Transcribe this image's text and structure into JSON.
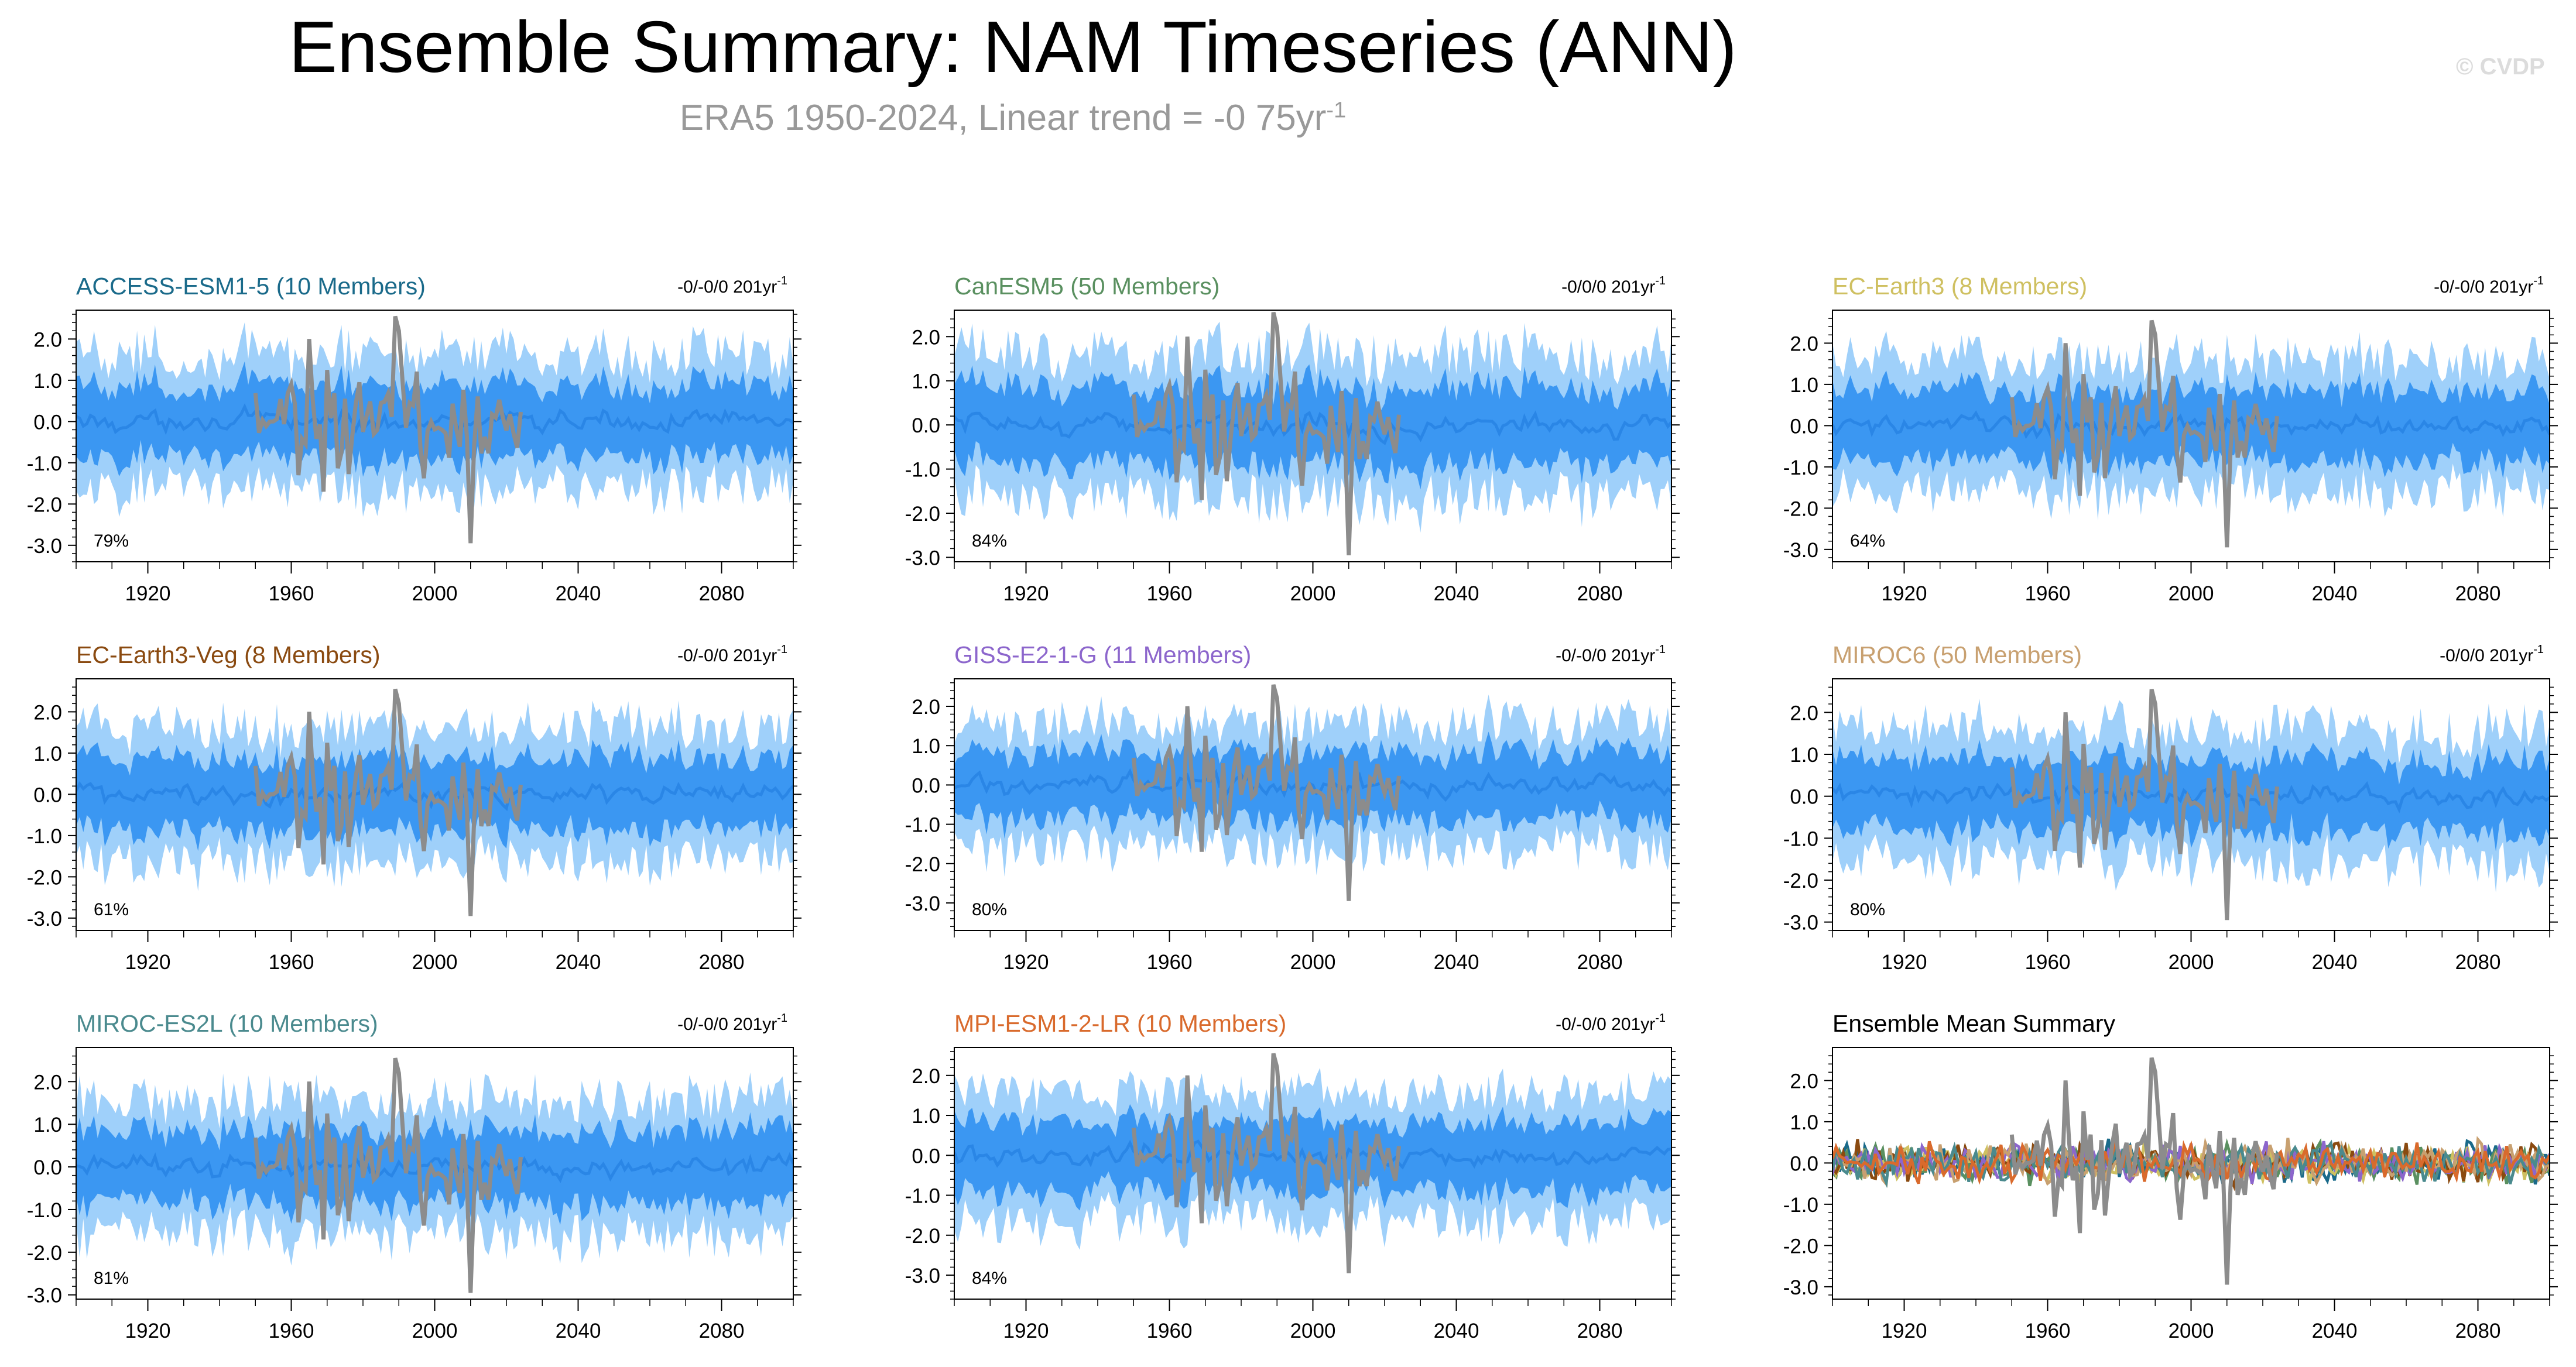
{
  "header": {
    "title": "Ensemble Summary: NAM Timeseries (ANN)",
    "subtitle": "ERA5 1950-2024, Linear trend = -0 75yr",
    "subtitle_sup": "-1",
    "copyright": "© CVDP"
  },
  "axis": {
    "x_ticks": [
      1920,
      1960,
      2000,
      2040,
      2080
    ],
    "x_range": [
      1900,
      2100
    ],
    "y_ticks": [
      "2.0",
      "1.0",
      "0.0",
      "-1.0",
      "-2.0",
      "-3.0"
    ],
    "y_values": [
      2,
      1,
      0,
      -1,
      -2,
      -3
    ]
  },
  "colors": {
    "band_outer": "#9fd0fa",
    "band_inner": "#3b97f2",
    "ens_mean": "#2a86e6",
    "observed": "#8c8c8c"
  },
  "observed_series": {
    "name": "ERA5",
    "years": [
      1950,
      2024
    ]
  },
  "chart_data": [
    {
      "type": "area",
      "title": "ACCESS-ESM1-5 (10 Members)",
      "title_color": "#1a6a8a",
      "trend": "-0/-0/0 201yr",
      "trend_sup": "-1",
      "percent": "79%",
      "ylim": [
        -3.4,
        2.7
      ]
    },
    {
      "type": "area",
      "title": "CanESM5 (50 Members)",
      "title_color": "#5a9060",
      "trend": "-0/0/0 201yr",
      "trend_sup": "-1",
      "percent": "84%",
      "ylim": [
        -3.1,
        2.6
      ]
    },
    {
      "type": "area",
      "title": "EC-Earth3 (8 Members)",
      "title_color": "#cfc061",
      "trend": "-0/-0/0 201yr",
      "trend_sup": "-1",
      "percent": "64%",
      "ylim": [
        -3.3,
        2.8
      ]
    },
    {
      "type": "area",
      "title": "EC-Earth3-Veg (8 Members)",
      "title_color": "#8a4a10",
      "trend": "-0/-0/0 201yr",
      "trend_sup": "-1",
      "percent": "61%",
      "ylim": [
        -3.3,
        2.8
      ]
    },
    {
      "type": "area",
      "title": "GISS-E2-1-G (11 Members)",
      "title_color": "#8c66cc",
      "trend": "-0/-0/0 201yr",
      "trend_sup": "-1",
      "percent": "80%",
      "ylim": [
        -3.7,
        2.7
      ]
    },
    {
      "type": "area",
      "title": "MIROC6 (50 Members)",
      "title_color": "#c8a070",
      "trend": "-0/0/0 201yr",
      "trend_sup": "-1",
      "percent": "80%",
      "ylim": [
        -3.2,
        2.8
      ]
    },
    {
      "type": "area",
      "title": "MIROC-ES2L (10 Members)",
      "title_color": "#4a8a8e",
      "trend": "-0/-0/0 201yr",
      "trend_sup": "-1",
      "percent": "81%",
      "ylim": [
        -3.1,
        2.8
      ]
    },
    {
      "type": "area",
      "title": "MPI-ESM1-2-LR (10 Members)",
      "title_color": "#d96a2c",
      "trend": "-0/-0/0 201yr",
      "trend_sup": "-1",
      "percent": "84%",
      "ylim": [
        -3.6,
        2.7
      ]
    },
    {
      "type": "line",
      "title": "Ensemble Mean Summary",
      "title_color": "#000000",
      "trend": "",
      "trend_sup": "",
      "percent": "",
      "ylim": [
        -3.3,
        2.8
      ],
      "series_colors": [
        "#1a6a8a",
        "#5a9060",
        "#cfc061",
        "#8a4a10",
        "#8c66cc",
        "#c8a070",
        "#4a8a8e",
        "#d96a2c"
      ]
    }
  ]
}
